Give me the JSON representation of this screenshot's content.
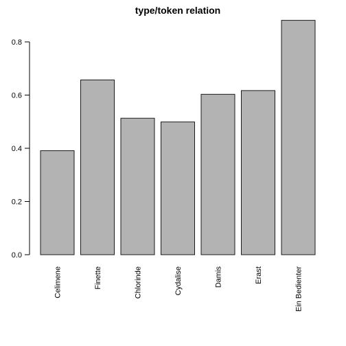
{
  "chart_data": {
    "type": "bar",
    "title": "type/token relation",
    "xlabel": "",
    "ylabel": "",
    "categories": [
      "Celimene",
      "Finette",
      "Chlorinde",
      "Cydalise",
      "Damis",
      "Erast",
      "Ein Bedienter"
    ],
    "values": [
      0.391,
      0.657,
      0.513,
      0.499,
      0.603,
      0.617,
      0.881
    ],
    "ylim": [
      0,
      0.88
    ],
    "yticks": [
      "0.0",
      "0.2",
      "0.4",
      "0.6",
      "0.8"
    ],
    "bar_color": "#b3b3b3",
    "grid": false,
    "legend": "none"
  }
}
